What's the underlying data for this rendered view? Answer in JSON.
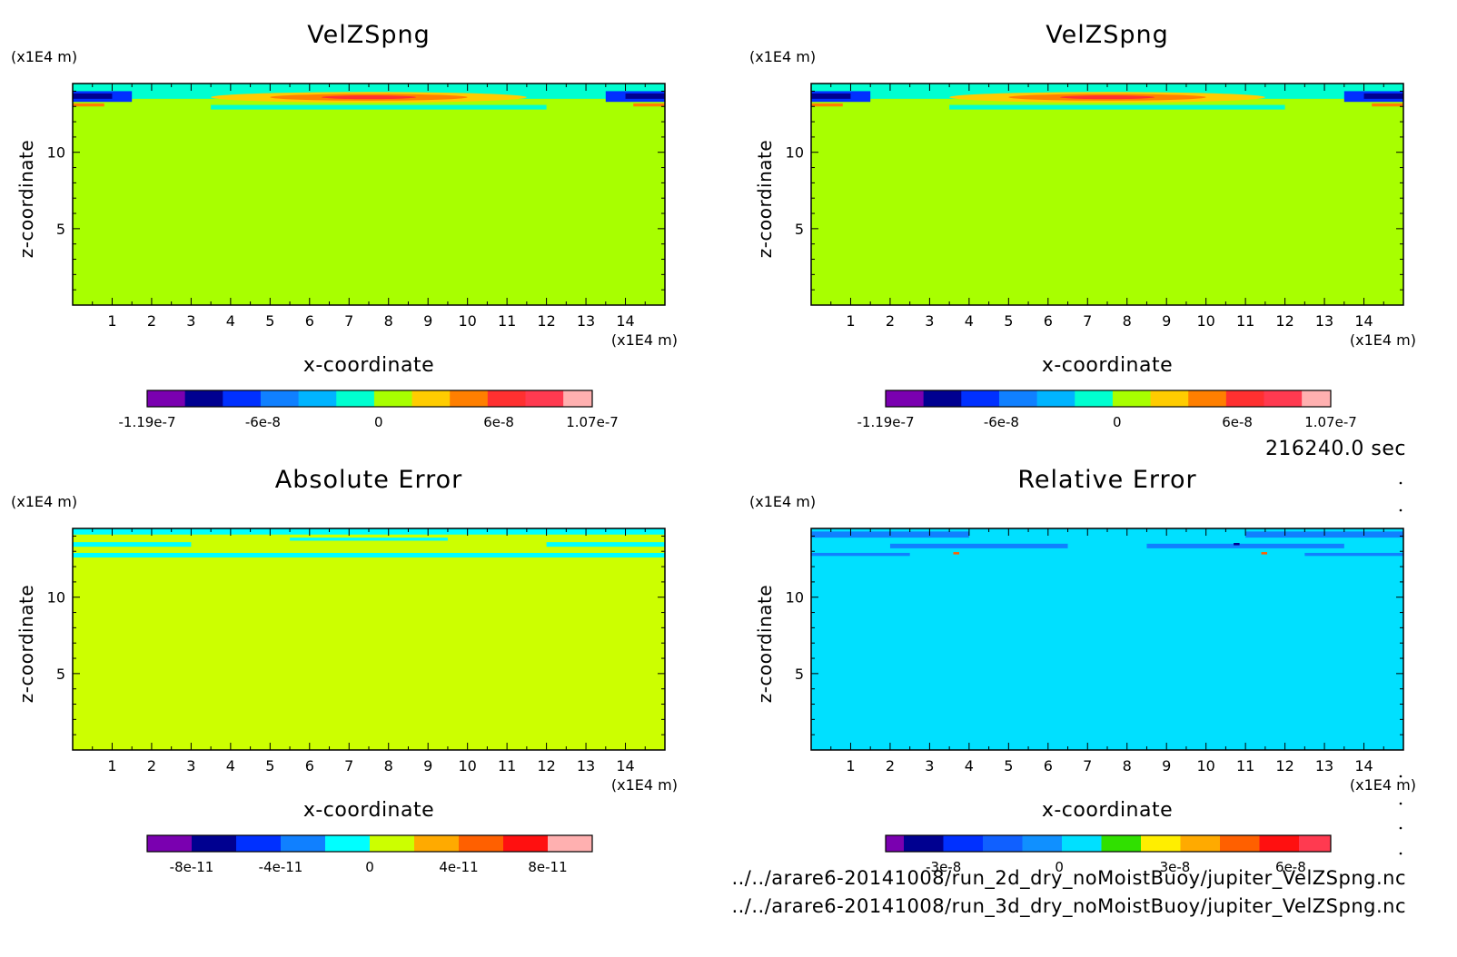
{
  "time_label": "216240.0 sec",
  "files": [
    "../../arare6-20141008/run_2d_dry_noMoistBuoy/jupiter_VelZSpng.nc",
    "../../arare6-20141008/run_3d_dry_noMoistBuoy/jupiter_VelZSpng.nc"
  ],
  "chart_data": [
    {
      "type": "heatmap",
      "title": "VelZSpng",
      "xlabel": "x-coordinate",
      "ylabel": "z-coordinate",
      "x_unit": "(x1E4 m)",
      "y_unit": "(x1E4 m)",
      "xlim": [
        0,
        15
      ],
      "ylim": [
        0,
        14.5
      ],
      "x_ticks": [
        1,
        2,
        3,
        4,
        5,
        6,
        7,
        8,
        9,
        10,
        11,
        12,
        13,
        14
      ],
      "y_ticks": [
        5,
        10
      ],
      "background": "#a8ff00",
      "bands": [
        {
          "z": [
            13.5,
            14.5
          ],
          "color": "#00ffd0"
        },
        {
          "z": [
            12.8,
            13.1
          ],
          "color": "#00ffd0",
          "x": [
            3.5,
            12.0
          ]
        }
      ],
      "features": [
        {
          "shape": "ellipse",
          "cx": 7.5,
          "cz": 13.6,
          "rx": 4.0,
          "rz": 0.35,
          "color": "#ffcc00"
        },
        {
          "shape": "ellipse",
          "cx": 7.5,
          "cz": 13.6,
          "rx": 2.5,
          "rz": 0.22,
          "color": "#ff7f00"
        },
        {
          "shape": "ellipse",
          "cx": 7.5,
          "cz": 13.6,
          "rx": 1.2,
          "rz": 0.12,
          "color": "#ff3030"
        },
        {
          "shape": "rect",
          "x": [
            0,
            1.5
          ],
          "z": [
            13.3,
            14.0
          ],
          "color": "#0030ff"
        },
        {
          "shape": "rect",
          "x": [
            13.5,
            15
          ],
          "z": [
            13.3,
            14.0
          ],
          "color": "#0030ff"
        },
        {
          "shape": "rect",
          "x": [
            0,
            1.0
          ],
          "z": [
            13.5,
            13.85
          ],
          "color": "#000090"
        },
        {
          "shape": "rect",
          "x": [
            14.0,
            15
          ],
          "z": [
            13.5,
            13.85
          ],
          "color": "#000090"
        },
        {
          "shape": "rect",
          "x": [
            0,
            0.8
          ],
          "z": [
            13.0,
            13.2
          ],
          "color": "#ff7f00"
        },
        {
          "shape": "rect",
          "x": [
            14.2,
            15
          ],
          "z": [
            13.0,
            13.2
          ],
          "color": "#ff7f00"
        }
      ],
      "colorbar": {
        "colors": [
          "#7a00b0",
          "#000090",
          "#0030ff",
          "#1080ff",
          "#00b4ff",
          "#00ffd0",
          "#a8ff00",
          "#ffcc00",
          "#ff7f00",
          "#ff3030",
          "#ff3a50",
          "#ffb0b0"
        ],
        "fractions": [
          0.085,
          0.085,
          0.085,
          0.085,
          0.085,
          0.085,
          0.085,
          0.085,
          0.085,
          0.085,
          0.085,
          0.065
        ],
        "ticks": [
          {
            "label": "-1.19e-7",
            "pos": 0.0
          },
          {
            "label": "-6e-8",
            "pos": 0.26
          },
          {
            "label": "0",
            "pos": 0.52
          },
          {
            "label": "6e-8",
            "pos": 0.79
          },
          {
            "label": "1.07e-7",
            "pos": 1.0
          }
        ]
      }
    },
    {
      "type": "heatmap",
      "title": "VelZSpng",
      "xlabel": "x-coordinate",
      "ylabel": "z-coordinate",
      "x_unit": "(x1E4 m)",
      "y_unit": "(x1E4 m)",
      "xlim": [
        0,
        15
      ],
      "ylim": [
        0,
        14.5
      ],
      "x_ticks": [
        1,
        2,
        3,
        4,
        5,
        6,
        7,
        8,
        9,
        10,
        11,
        12,
        13,
        14
      ],
      "y_ticks": [
        5,
        10
      ],
      "background": "#a8ff00",
      "bands": [
        {
          "z": [
            13.5,
            14.5
          ],
          "color": "#00ffd0"
        },
        {
          "z": [
            12.8,
            13.1
          ],
          "color": "#00ffd0",
          "x": [
            3.5,
            12.0
          ]
        }
      ],
      "features": [
        {
          "shape": "ellipse",
          "cx": 7.5,
          "cz": 13.6,
          "rx": 4.0,
          "rz": 0.35,
          "color": "#ffcc00"
        },
        {
          "shape": "ellipse",
          "cx": 7.5,
          "cz": 13.6,
          "rx": 2.5,
          "rz": 0.22,
          "color": "#ff7f00"
        },
        {
          "shape": "ellipse",
          "cx": 7.5,
          "cz": 13.6,
          "rx": 1.2,
          "rz": 0.12,
          "color": "#ff3030"
        },
        {
          "shape": "rect",
          "x": [
            0,
            1.5
          ],
          "z": [
            13.3,
            14.0
          ],
          "color": "#0030ff"
        },
        {
          "shape": "rect",
          "x": [
            13.5,
            15
          ],
          "z": [
            13.3,
            14.0
          ],
          "color": "#0030ff"
        },
        {
          "shape": "rect",
          "x": [
            0,
            1.0
          ],
          "z": [
            13.5,
            13.85
          ],
          "color": "#000090"
        },
        {
          "shape": "rect",
          "x": [
            14.0,
            15
          ],
          "z": [
            13.5,
            13.85
          ],
          "color": "#000090"
        },
        {
          "shape": "rect",
          "x": [
            0,
            0.8
          ],
          "z": [
            13.0,
            13.2
          ],
          "color": "#ff7f00"
        },
        {
          "shape": "rect",
          "x": [
            14.2,
            15
          ],
          "z": [
            13.0,
            13.2
          ],
          "color": "#ff7f00"
        }
      ],
      "colorbar": {
        "colors": [
          "#7a00b0",
          "#000090",
          "#0030ff",
          "#1080ff",
          "#00b4ff",
          "#00ffd0",
          "#a8ff00",
          "#ffcc00",
          "#ff7f00",
          "#ff3030",
          "#ff3a50",
          "#ffb0b0"
        ],
        "fractions": [
          0.085,
          0.085,
          0.085,
          0.085,
          0.085,
          0.085,
          0.085,
          0.085,
          0.085,
          0.085,
          0.085,
          0.065
        ],
        "ticks": [
          {
            "label": "-1.19e-7",
            "pos": 0.0
          },
          {
            "label": "-6e-8",
            "pos": 0.26
          },
          {
            "label": "0",
            "pos": 0.52
          },
          {
            "label": "6e-8",
            "pos": 0.79
          },
          {
            "label": "1.07e-7",
            "pos": 1.0
          }
        ]
      }
    },
    {
      "type": "heatmap",
      "title": "Absolute Error",
      "xlabel": "x-coordinate",
      "ylabel": "z-coordinate",
      "x_unit": "(x1E4 m)",
      "y_unit": "(x1E4 m)",
      "xlim": [
        0,
        15
      ],
      "ylim": [
        0,
        14.5
      ],
      "x_ticks": [
        1,
        2,
        3,
        4,
        5,
        6,
        7,
        8,
        9,
        10,
        11,
        12,
        13,
        14
      ],
      "y_ticks": [
        5,
        10
      ],
      "background": "#ccff00",
      "bands": [
        {
          "z": [
            14.1,
            14.5
          ],
          "color": "#00ffff"
        },
        {
          "z": [
            13.3,
            13.6
          ],
          "color": "#00ffff",
          "x": [
            0,
            3.0
          ]
        },
        {
          "z": [
            13.3,
            13.6
          ],
          "color": "#00ffff",
          "x": [
            12.0,
            15
          ]
        },
        {
          "z": [
            12.6,
            12.9
          ],
          "color": "#00ffff"
        },
        {
          "z": [
            13.7,
            13.9
          ],
          "color": "#00ffff",
          "x": [
            5.5,
            9.5
          ]
        }
      ],
      "features": [],
      "colorbar": {
        "colors": [
          "#7a00b0",
          "#000090",
          "#0030ff",
          "#1080ff",
          "#00ffff",
          "#ccff00",
          "#ffaa00",
          "#ff6000",
          "#ff1010",
          "#ffb0b0"
        ],
        "fractions": [
          0.1,
          0.1,
          0.1,
          0.1,
          0.1,
          0.1,
          0.1,
          0.1,
          0.1,
          0.1
        ],
        "ticks": [
          {
            "label": "-8e-11",
            "pos": 0.1
          },
          {
            "label": "-4e-11",
            "pos": 0.3
          },
          {
            "label": "0",
            "pos": 0.5
          },
          {
            "label": "4e-11",
            "pos": 0.7
          },
          {
            "label": "8e-11",
            "pos": 0.9
          }
        ]
      }
    },
    {
      "type": "heatmap",
      "title": "Relative Error",
      "xlabel": "x-coordinate",
      "ylabel": "z-coordinate",
      "x_unit": "(x1E4 m)",
      "y_unit": "(x1E4 m)",
      "xlim": [
        0,
        15
      ],
      "ylim": [
        0,
        14.5
      ],
      "x_ticks": [
        1,
        2,
        3,
        4,
        5,
        6,
        7,
        8,
        9,
        10,
        11,
        12,
        13,
        14
      ],
      "y_ticks": [
        5,
        10
      ],
      "background": "#00e0ff",
      "bands": [
        {
          "z": [
            13.9,
            14.3
          ],
          "color": "#1080ff",
          "x": [
            0,
            4.0
          ]
        },
        {
          "z": [
            13.9,
            14.3
          ],
          "color": "#1080ff",
          "x": [
            11.0,
            15
          ]
        },
        {
          "z": [
            13.2,
            13.5
          ],
          "color": "#1080ff",
          "x": [
            2.0,
            6.5
          ]
        },
        {
          "z": [
            13.2,
            13.5
          ],
          "color": "#1080ff",
          "x": [
            8.5,
            13.5
          ]
        },
        {
          "z": [
            12.7,
            12.9
          ],
          "color": "#1080ff",
          "x": [
            0,
            2.5
          ]
        },
        {
          "z": [
            12.7,
            12.9
          ],
          "color": "#1080ff",
          "x": [
            12.5,
            15
          ]
        }
      ],
      "features": [
        {
          "shape": "rect",
          "x": [
            3.6,
            3.75
          ],
          "z": [
            12.8,
            12.95
          ],
          "color": "#ff6000"
        },
        {
          "shape": "rect",
          "x": [
            11.4,
            11.55
          ],
          "z": [
            12.8,
            12.95
          ],
          "color": "#ff6000"
        },
        {
          "shape": "rect",
          "x": [
            10.7,
            10.85
          ],
          "z": [
            13.4,
            13.55
          ],
          "color": "#000090"
        }
      ],
      "colorbar": {
        "colors": [
          "#7a00b0",
          "#000090",
          "#0030ff",
          "#1060ff",
          "#1090ff",
          "#00e0ff",
          "#30e000",
          "#ffee00",
          "#ffaa00",
          "#ff6000",
          "#ff1010",
          "#ff3a50"
        ],
        "fractions": [
          0.04,
          0.087,
          0.087,
          0.087,
          0.087,
          0.087,
          0.087,
          0.087,
          0.087,
          0.087,
          0.087,
          0.07
        ],
        "ticks": [
          {
            "label": "-3e-8",
            "pos": 0.13
          },
          {
            "label": "0",
            "pos": 0.39
          },
          {
            "label": "3e-8",
            "pos": 0.65
          },
          {
            "label": "6e-8",
            "pos": 0.91
          }
        ]
      }
    }
  ]
}
